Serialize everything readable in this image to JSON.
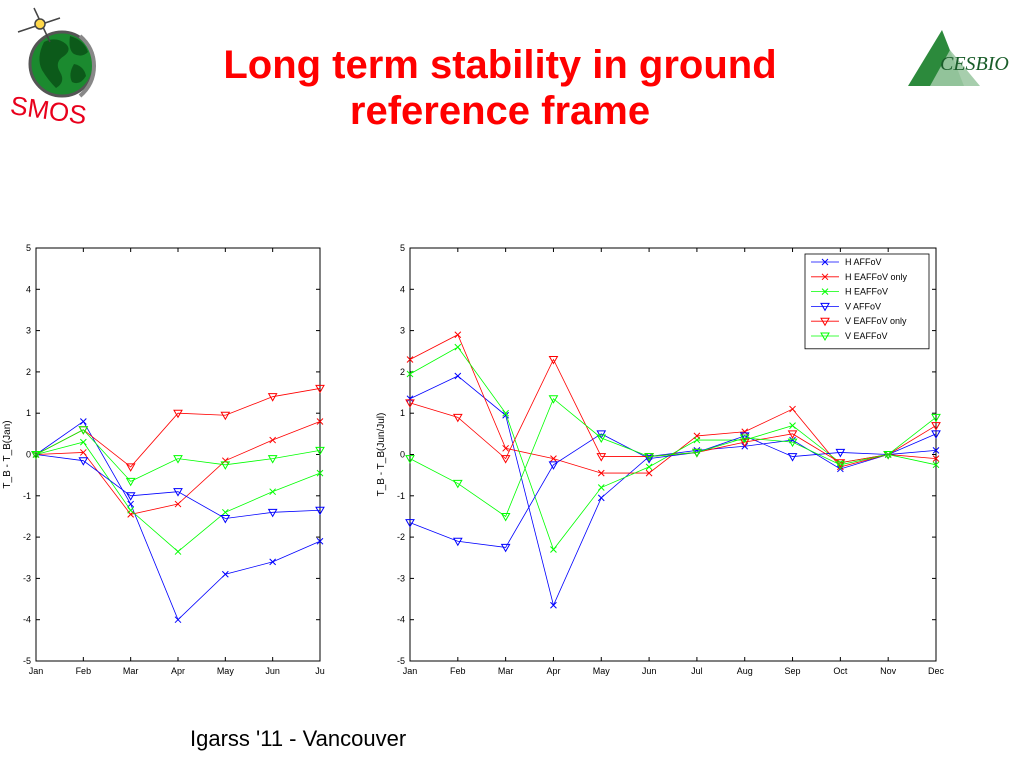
{
  "slide": {
    "title": "Long term stability in ground reference frame",
    "footer": "Igarss '11 - Vancouver",
    "title_color": "#ff0000"
  },
  "logos": {
    "left_text": "SMOS",
    "right_text": "CESBIO"
  },
  "chart_data": [
    {
      "type": "line",
      "categories": [
        "Jan",
        "Feb",
        "Mar",
        "Apr",
        "May",
        "Jun",
        "Ju"
      ],
      "ylabel": "T_B - T_B(Jan)",
      "ylim": [
        -5,
        5
      ],
      "yticks": [
        -5,
        -4,
        -3,
        -2,
        -1,
        0,
        1,
        2,
        3,
        4,
        5
      ],
      "grid": false,
      "legend": "none",
      "series": [
        {
          "name": "H AFFoV",
          "marker": "x",
          "color": "#0000ff",
          "values": [
            0,
            0.8,
            -1.2,
            -4.0,
            -2.9,
            -2.6,
            -2.1
          ]
        },
        {
          "name": "H EAFFoV only",
          "marker": "x",
          "color": "#ff0000",
          "values": [
            0,
            0.05,
            -1.45,
            -1.2,
            -0.15,
            0.35,
            0.8
          ]
        },
        {
          "name": "H EAFFoV",
          "marker": "x",
          "color": "#00ff00",
          "values": [
            0,
            0.3,
            -1.35,
            -2.35,
            -1.4,
            -0.9,
            -0.45
          ]
        },
        {
          "name": "V AFFoV",
          "marker": "v",
          "color": "#0000ff",
          "values": [
            0,
            -0.15,
            -1.0,
            -0.9,
            -1.55,
            -1.4,
            -1.35
          ]
        },
        {
          "name": "V EAFFoV only",
          "marker": "v",
          "color": "#ff0000",
          "values": [
            0,
            0.6,
            -0.3,
            1.0,
            0.95,
            1.4,
            1.6
          ]
        },
        {
          "name": "V EAFFoV",
          "marker": "v",
          "color": "#00ff00",
          "values": [
            0,
            0.6,
            -0.65,
            -0.1,
            -0.25,
            -0.1,
            0.1
          ]
        }
      ]
    },
    {
      "type": "line",
      "categories": [
        "Jan",
        "Feb",
        "Mar",
        "Apr",
        "May",
        "Jun",
        "Jul",
        "Aug",
        "Sep",
        "Oct",
        "Nov",
        "Dec"
      ],
      "ylabel": "T_B - T_B(Jun/Jul)",
      "ylim": [
        -5,
        5
      ],
      "yticks": [
        -5,
        -4,
        -3,
        -2,
        -1,
        0,
        1,
        2,
        3,
        4,
        5
      ],
      "grid": false,
      "legend": "top-right",
      "series": [
        {
          "name": "H AFFoV",
          "marker": "x",
          "color": "#0000ff",
          "values": [
            1.35,
            1.9,
            0.95,
            -3.65,
            -1.05,
            -0.05,
            0.1,
            0.2,
            0.35,
            -0.35,
            0.0,
            0.1
          ]
        },
        {
          "name": "H EAFFoV only",
          "marker": "x",
          "color": "#ff0000",
          "values": [
            2.3,
            2.9,
            0.15,
            -0.1,
            -0.45,
            -0.45,
            0.45,
            0.55,
            1.1,
            -0.3,
            0.0,
            -0.1
          ]
        },
        {
          "name": "H EAFFoV",
          "marker": "x",
          "color": "#00ff00",
          "values": [
            1.95,
            2.6,
            1.0,
            -2.3,
            -0.8,
            -0.3,
            0.35,
            0.35,
            0.7,
            -0.2,
            0.0,
            -0.25
          ]
        },
        {
          "name": "V AFFoV",
          "marker": "v",
          "color": "#0000ff",
          "values": [
            -1.65,
            -2.1,
            -2.25,
            -0.25,
            0.5,
            -0.1,
            0.05,
            0.45,
            -0.05,
            0.05,
            0.0,
            0.5
          ]
        },
        {
          "name": "V EAFFoV only",
          "marker": "v",
          "color": "#ff0000",
          "values": [
            1.25,
            0.9,
            -0.1,
            2.3,
            -0.05,
            -0.05,
            0.05,
            0.3,
            0.5,
            -0.2,
            0.0,
            0.7
          ]
        },
        {
          "name": "V EAFFoV",
          "marker": "v",
          "color": "#00ff00",
          "values": [
            -0.1,
            -0.7,
            -1.5,
            1.35,
            0.4,
            -0.05,
            0.05,
            0.4,
            0.3,
            -0.25,
            0.0,
            0.9
          ]
        }
      ]
    }
  ]
}
